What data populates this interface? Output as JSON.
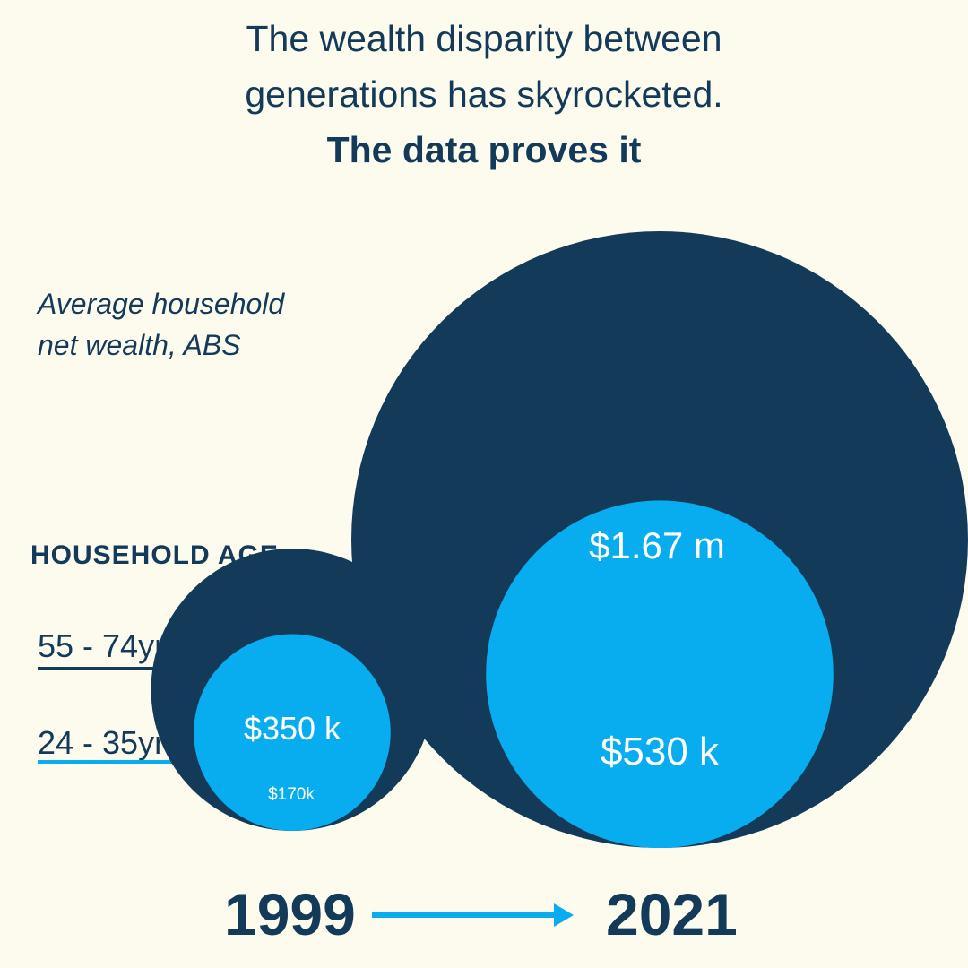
{
  "title": {
    "line1": "The wealth disparity between",
    "line2": "generations has skyrocketed.",
    "line3": "The data proves it"
  },
  "subtitle": {
    "line1": "Average household",
    "line2": "net wealth, ABS"
  },
  "legend": {
    "title": "HOUSEHOLD AGE",
    "older": "55 - 74yrs",
    "younger": "24 - 35yrs"
  },
  "colors": {
    "background": "#fdfbee",
    "older": "#143a5a",
    "younger": "#08adef",
    "text": "#143a5a"
  },
  "chart_data": {
    "type": "bubble",
    "categories": [
      "1999",
      "2021"
    ],
    "series": [
      {
        "name": "55 - 74yrs",
        "values": [
          350000,
          1670000
        ],
        "labels": [
          "$350 k",
          "$1.67 m"
        ]
      },
      {
        "name": "24 - 35yrs",
        "values": [
          170000,
          530000
        ],
        "labels": [
          "$170k",
          "$530 k"
        ]
      }
    ],
    "title": "The wealth disparity between generations has skyrocketed. The data proves it",
    "xlabel": "",
    "ylabel": ""
  }
}
